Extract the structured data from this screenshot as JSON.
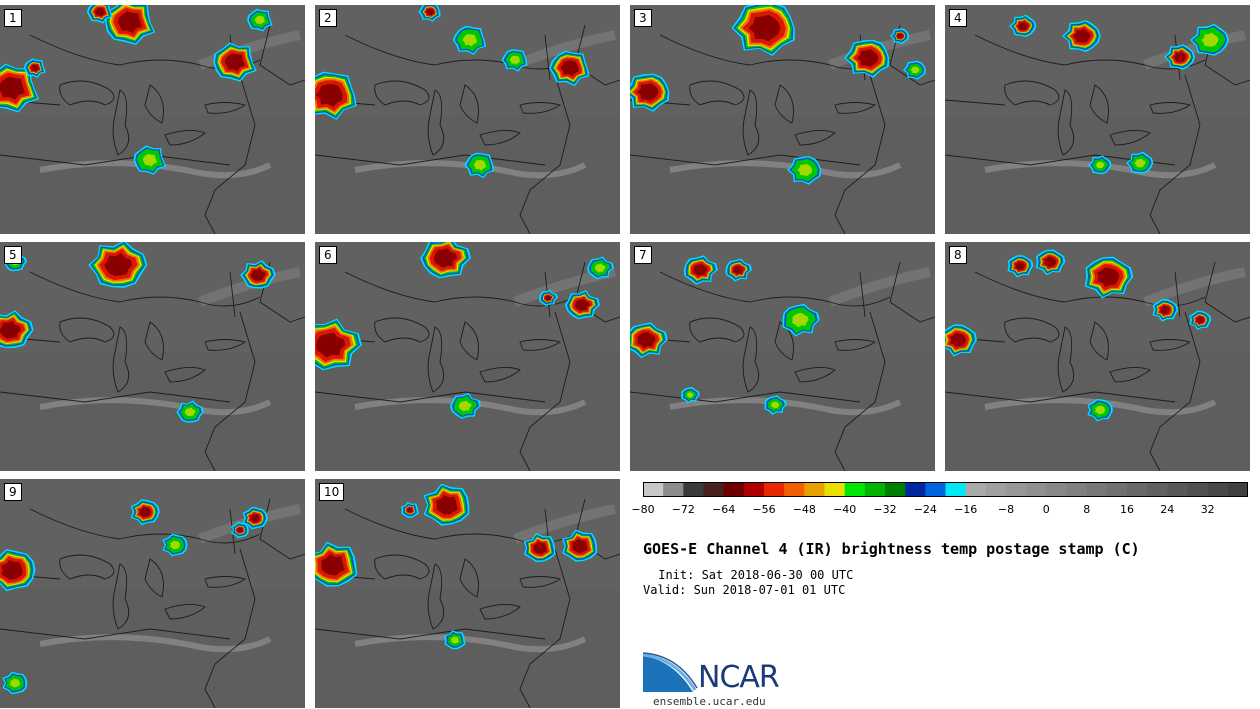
{
  "title": "GOES-E Channel 4 (IR) brightness temp postage stamp (C)",
  "init": " Init: Sat 2018-06-30 00 UTC",
  "valid": "Valid: Sun 2018-07-01 01 UTC",
  "logo": {
    "name": "NCAR",
    "site": "ensemble.ucar.edu"
  },
  "panels": [
    {
      "label": "1"
    },
    {
      "label": "2"
    },
    {
      "label": "3"
    },
    {
      "label": "4"
    },
    {
      "label": "5"
    },
    {
      "label": "6"
    },
    {
      "label": "7"
    },
    {
      "label": "8"
    },
    {
      "label": "9"
    },
    {
      "label": "10"
    }
  ],
  "colorbar": {
    "units": "C",
    "min": -80,
    "max": 40,
    "step": 4,
    "ticks": [
      "−80",
      "−72",
      "−64",
      "−56",
      "−48",
      "−40",
      "−32",
      "−24",
      "−16",
      "−8",
      "0",
      "8",
      "16",
      "24",
      "32"
    ],
    "tick_values": [
      -80,
      -72,
      -64,
      -56,
      -48,
      -40,
      -32,
      -24,
      -16,
      -8,
      0,
      8,
      16,
      24,
      32
    ],
    "colors": [
      "#c8c8c8",
      "#8c8c8c",
      "#3a3a3a",
      "#4a2020",
      "#6e0000",
      "#b00000",
      "#e82800",
      "#f06000",
      "#e8a000",
      "#e8e000",
      "#00e800",
      "#00b400",
      "#008000",
      "#0028a0",
      "#0064e0",
      "#00e8f8",
      "#aaaaaa",
      "#a0a0a0",
      "#989898",
      "#909090",
      "#888888",
      "#808080",
      "#787878",
      "#707070",
      "#686868",
      "#606060",
      "#585858",
      "#505050",
      "#484848",
      "#404040"
    ]
  },
  "colors": {
    "background": "#5e5e5e",
    "cold": "#8a0000",
    "red": "#d81800",
    "orange": "#f07000",
    "yellow": "#e8e000",
    "green": "#00c800",
    "blue": "#0050d0",
    "cyan": "#00e0f0",
    "cloud": "#a8a8a8"
  }
}
